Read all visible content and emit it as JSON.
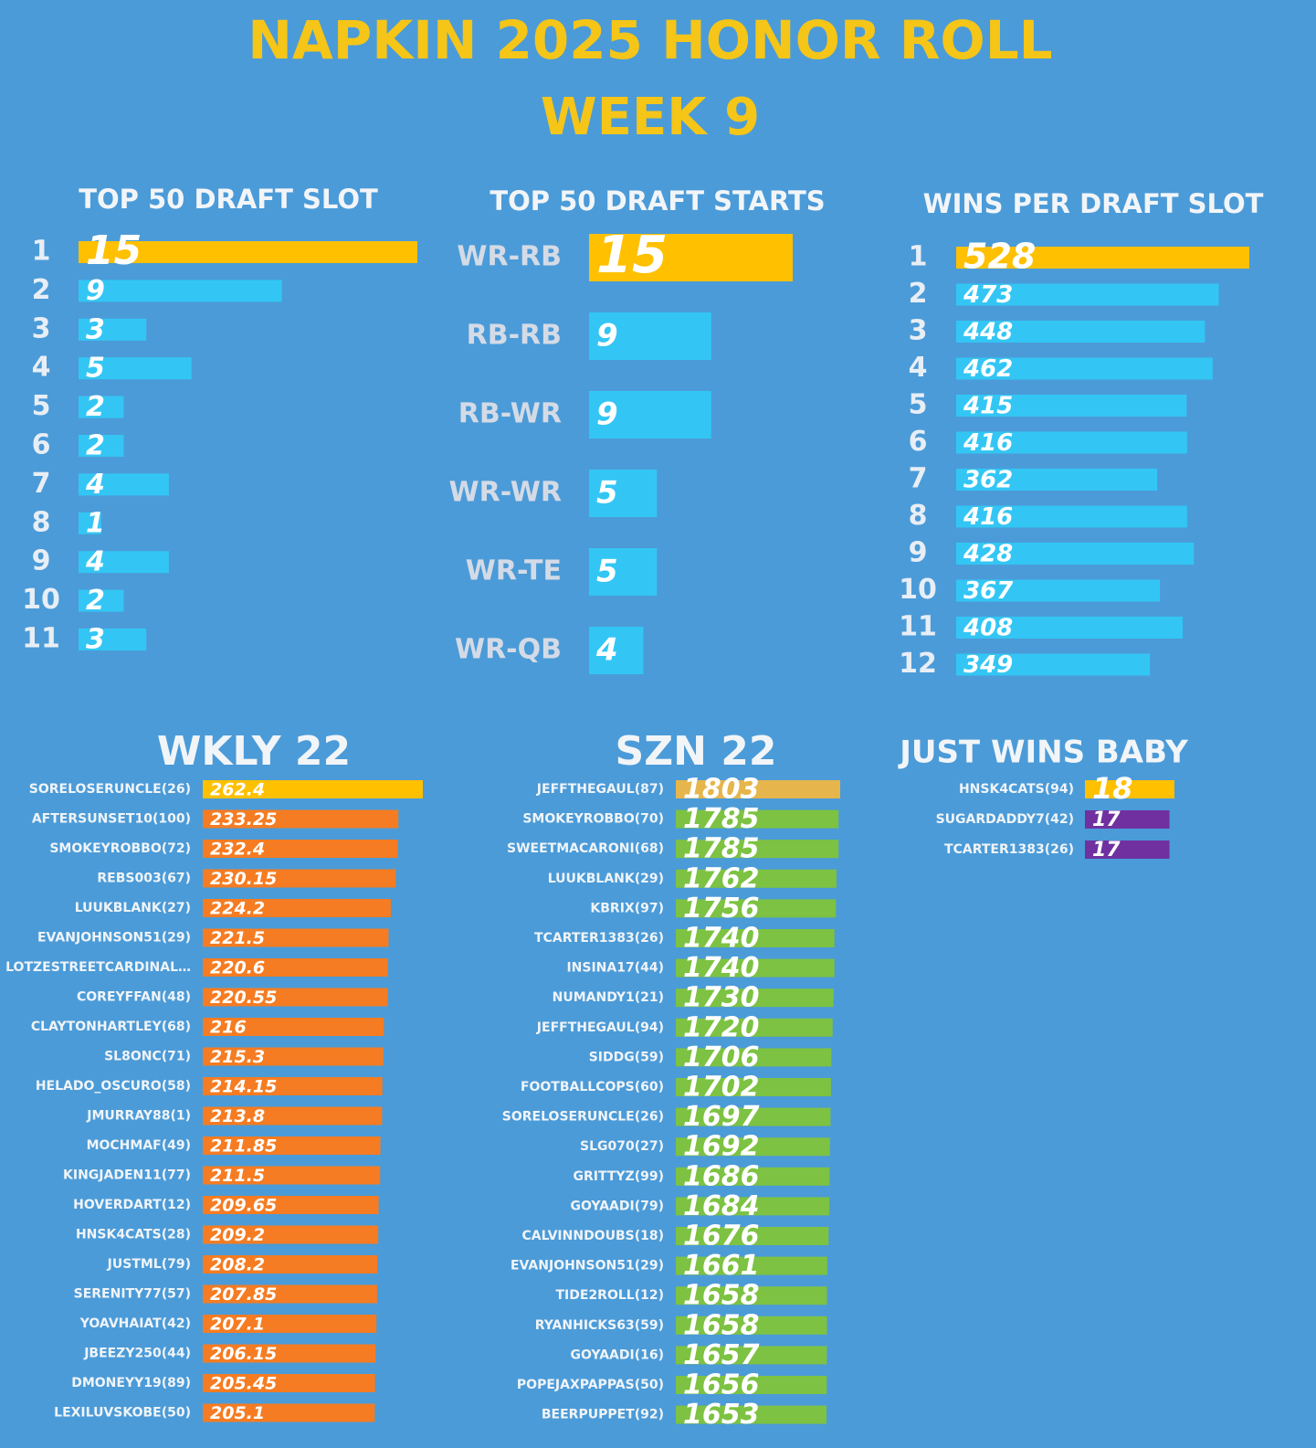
{
  "header": {
    "title": "NAPKIN 2025 HONOR ROLL",
    "subtitle": "WEEK 9"
  },
  "chart_data": [
    {
      "type": "bar",
      "title": "TOP 50 DRAFT SLOT",
      "color": "#33c6f4",
      "leader_color": "#ffc000",
      "categories": [
        "1",
        "2",
        "3",
        "4",
        "5",
        "6",
        "7",
        "8",
        "9",
        "10",
        "11"
      ],
      "values": [
        15,
        9,
        3,
        5,
        2,
        2,
        4,
        1,
        4,
        2,
        3
      ]
    },
    {
      "type": "bar",
      "title": "TOP 50 DRAFT STARTS",
      "color": "#33c6f4",
      "leader_color": "#ffc000",
      "categories": [
        "WR-RB",
        "RB-RB",
        "RB-WR",
        "WR-WR",
        "WR-TE",
        "WR-QB"
      ],
      "values": [
        15,
        9,
        9,
        5,
        5,
        4
      ]
    },
    {
      "type": "bar",
      "title": "WINS PER DRAFT SLOT",
      "color": "#33c6f4",
      "leader_color": "#ffc000",
      "categories": [
        "1",
        "2",
        "3",
        "4",
        "5",
        "6",
        "7",
        "8",
        "9",
        "10",
        "11",
        "12"
      ],
      "values": [
        528,
        473,
        448,
        462,
        415,
        416,
        362,
        416,
        428,
        367,
        408,
        349
      ]
    },
    {
      "type": "bar",
      "title": "WKLY 22",
      "color": "#f57c22",
      "leader_color": "#ffc000",
      "categories": [
        "SORELOSERUNCLE(26)",
        "AFTERSUNSET10(100)",
        "SMOKEYROBBO(72)",
        "REBS003(67)",
        "LUUKBLANK(27)",
        "EVANJOHNSON51(29)",
        "LOTZESTREETCARDINAL…",
        "COREYFFAN(48)",
        "CLAYTONHARTLEY(68)",
        "SL8ONC(71)",
        "HELADO_OSCURO(58)",
        "JMURRAY88(1)",
        "MOCHMAF(49)",
        "KINGJADEN11(77)",
        "HOVERDART(12)",
        "HNSK4CATS(28)",
        "JUSTML(79)",
        "SERENITY77(57)",
        "YOAVHAIAT(42)",
        "JBEEZY250(44)",
        "DMONEYY19(89)",
        "LEXILUVSKOBE(50)"
      ],
      "values": [
        262.4,
        233.25,
        232.4,
        230.15,
        224.2,
        221.5,
        220.6,
        220.55,
        216,
        215.3,
        214.15,
        213.8,
        211.85,
        211.5,
        209.65,
        209.2,
        208.2,
        207.85,
        207.1,
        206.15,
        205.45,
        205.1
      ]
    },
    {
      "type": "bar",
      "title": "SZN 22",
      "color": "#7dc242",
      "leader_color": "#e6b64c",
      "categories": [
        "JEFFTHEGAUL(87)",
        "SMOKEYROBBO(70)",
        "SWEETMACARONI(68)",
        "LUUKBLANK(29)",
        "KBRIX(97)",
        "TCARTER1383(26)",
        "INSINA17(44)",
        "NUMANDY1(21)",
        "JEFFTHEGAUL(94)",
        "SIDDG(59)",
        "FOOTBALLCOPS(60)",
        "SORELOSERUNCLE(26)",
        "SLG070(27)",
        "GRITTYZ(99)",
        "GOYAADI(79)",
        "CALVINNDOUBS(18)",
        "EVANJOHNSON51(29)",
        "TIDE2ROLL(12)",
        "RYANHICKS63(59)",
        "GOYAADI(16)",
        "POPEJAXPAPPAS(50)",
        "BEERPUPPET(92)"
      ],
      "values": [
        1803,
        1785,
        1785,
        1762,
        1756,
        1740,
        1740,
        1730,
        1720,
        1706,
        1702,
        1697,
        1692,
        1686,
        1684,
        1676,
        1661,
        1658,
        1658,
        1657,
        1656,
        1653
      ]
    },
    {
      "type": "bar",
      "title": "JUST WINS BABY",
      "color": "#7030a0",
      "leader_color": "#ffc000",
      "categories": [
        "HNSK4CATS(94)",
        "SUGARDADDY7(42)",
        "TCARTER1383(26)"
      ],
      "values": [
        18,
        17,
        17
      ]
    }
  ]
}
